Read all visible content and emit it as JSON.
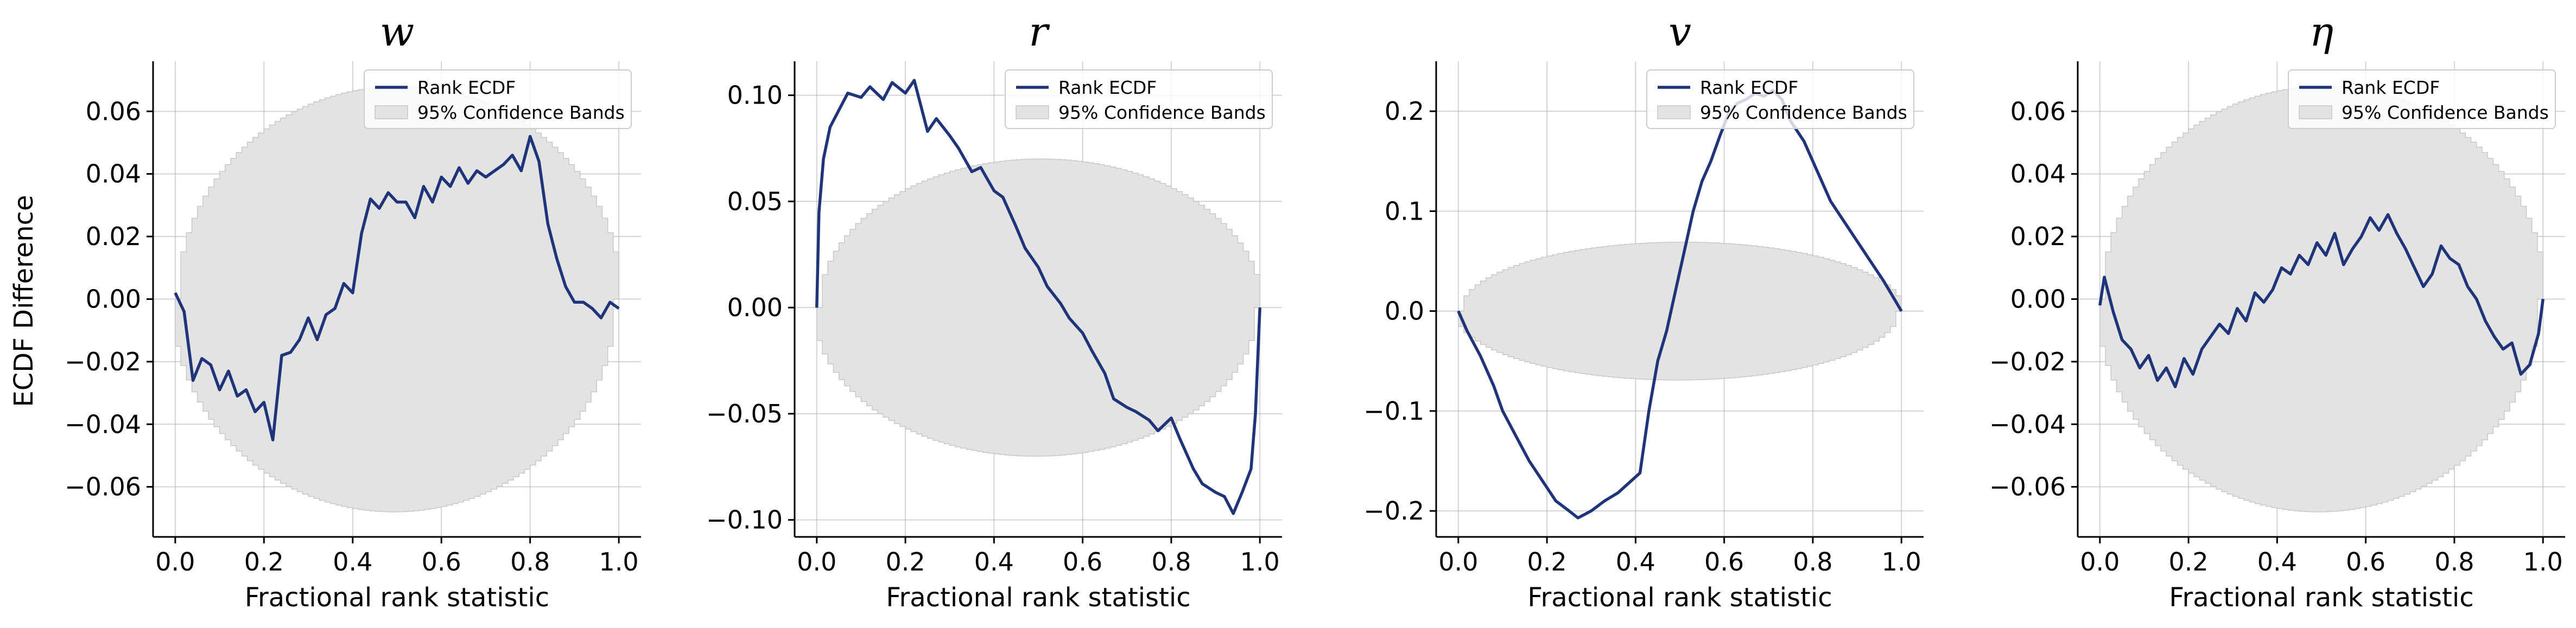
{
  "figure": {
    "ylabel": "ECDF Difference",
    "colors": {
      "line": "#1f3479",
      "band": "#e3e3e3",
      "band_edge": "#c8c8c8",
      "grid": "#b0b0b0"
    }
  },
  "chart_data": [
    {
      "type": "line",
      "title": "w",
      "xlabel": "Fractional rank statistic",
      "ylabel": "ECDF Difference",
      "xlim": [
        -0.05,
        1.05
      ],
      "ylim": [
        -0.076,
        0.076
      ],
      "xticks": [
        0.0,
        0.2,
        0.4,
        0.6,
        0.8,
        1.0
      ],
      "xtick_labels": [
        "0.0",
        "0.2",
        "0.4",
        "0.6",
        "0.8",
        "1.0"
      ],
      "yticks": [
        -0.06,
        -0.04,
        -0.02,
        0.0,
        0.02,
        0.04,
        0.06
      ],
      "ytick_labels": [
        "−0.06",
        "−0.04",
        "−0.02",
        "0.00",
        "0.02",
        "0.04",
        "0.06"
      ],
      "grid": true,
      "legend": {
        "position": "top-right",
        "entries": [
          "Rank ECDF",
          "95% Confidence Bands"
        ]
      },
      "band_half_width": 0.068,
      "series": [
        {
          "name": "Rank ECDF",
          "x": [
            0.0,
            0.02,
            0.04,
            0.06,
            0.08,
            0.1,
            0.12,
            0.14,
            0.16,
            0.18,
            0.2,
            0.22,
            0.24,
            0.26,
            0.28,
            0.3,
            0.32,
            0.34,
            0.36,
            0.38,
            0.4,
            0.42,
            0.44,
            0.46,
            0.48,
            0.5,
            0.52,
            0.54,
            0.56,
            0.58,
            0.6,
            0.62,
            0.64,
            0.66,
            0.68,
            0.7,
            0.72,
            0.74,
            0.76,
            0.78,
            0.8,
            0.82,
            0.84,
            0.86,
            0.88,
            0.9,
            0.92,
            0.94,
            0.96,
            0.98,
            1.0
          ],
          "y": [
            0.002,
            -0.004,
            -0.026,
            -0.019,
            -0.021,
            -0.029,
            -0.023,
            -0.031,
            -0.029,
            -0.036,
            -0.033,
            -0.045,
            -0.018,
            -0.017,
            -0.013,
            -0.006,
            -0.013,
            -0.005,
            -0.003,
            0.005,
            0.002,
            0.021,
            0.032,
            0.029,
            0.034,
            0.031,
            0.031,
            0.026,
            0.036,
            0.031,
            0.039,
            0.036,
            0.042,
            0.037,
            0.041,
            0.039,
            0.041,
            0.043,
            0.046,
            0.041,
            0.052,
            0.044,
            0.024,
            0.013,
            0.004,
            -0.001,
            -0.001,
            -0.003,
            -0.006,
            -0.001,
            -0.003
          ]
        }
      ]
    },
    {
      "type": "line",
      "title": "r",
      "xlabel": "Fractional rank statistic",
      "xlim": [
        -0.05,
        1.05
      ],
      "ylim": [
        -0.108,
        0.116
      ],
      "xticks": [
        0.0,
        0.2,
        0.4,
        0.6,
        0.8,
        1.0
      ],
      "xtick_labels": [
        "0.0",
        "0.2",
        "0.4",
        "0.6",
        "0.8",
        "1.0"
      ],
      "yticks": [
        -0.1,
        -0.05,
        0.0,
        0.05,
        0.1
      ],
      "ytick_labels": [
        "−0.10",
        "−0.05",
        "0.00",
        "0.05",
        "0.10"
      ],
      "grid": true,
      "legend": {
        "position": "top-right",
        "entries": [
          "Rank ECDF",
          "95% Confidence Bands"
        ]
      },
      "band_half_width": 0.07,
      "series": [
        {
          "name": "Rank ECDF",
          "x": [
            0.0,
            0.005,
            0.015,
            0.03,
            0.05,
            0.07,
            0.1,
            0.12,
            0.15,
            0.17,
            0.2,
            0.22,
            0.25,
            0.27,
            0.3,
            0.32,
            0.35,
            0.37,
            0.4,
            0.42,
            0.45,
            0.47,
            0.5,
            0.52,
            0.55,
            0.57,
            0.6,
            0.62,
            0.65,
            0.67,
            0.7,
            0.72,
            0.75,
            0.77,
            0.8,
            0.82,
            0.85,
            0.87,
            0.9,
            0.92,
            0.94,
            0.96,
            0.98,
            0.99,
            1.0
          ],
          "y": [
            0.0,
            0.045,
            0.07,
            0.085,
            0.093,
            0.101,
            0.099,
            0.104,
            0.098,
            0.106,
            0.101,
            0.107,
            0.083,
            0.089,
            0.081,
            0.075,
            0.064,
            0.066,
            0.055,
            0.052,
            0.038,
            0.028,
            0.019,
            0.01,
            0.002,
            -0.005,
            -0.012,
            -0.02,
            -0.031,
            -0.043,
            -0.047,
            -0.049,
            -0.053,
            -0.058,
            -0.052,
            -0.062,
            -0.076,
            -0.083,
            -0.087,
            -0.089,
            -0.097,
            -0.087,
            -0.076,
            -0.05,
            0.0
          ]
        }
      ]
    },
    {
      "type": "line",
      "title": "v",
      "xlabel": "Fractional rank statistic",
      "xlim": [
        -0.05,
        1.05
      ],
      "ylim": [
        -0.226,
        0.25
      ],
      "xticks": [
        0.0,
        0.2,
        0.4,
        0.6,
        0.8,
        1.0
      ],
      "xtick_labels": [
        "0.0",
        "0.2",
        "0.4",
        "0.6",
        "0.8",
        "1.0"
      ],
      "yticks": [
        -0.2,
        -0.1,
        0.0,
        0.1,
        0.2
      ],
      "ytick_labels": [
        "−0.2",
        "−0.1",
        "0.0",
        "0.1",
        "0.2"
      ],
      "grid": true,
      "legend": {
        "position": "top-right",
        "entries": [
          "Rank ECDF",
          "95% Confidence Bands"
        ]
      },
      "band_half_width": 0.069,
      "series": [
        {
          "name": "Rank ECDF",
          "x": [
            0.0,
            0.02,
            0.05,
            0.08,
            0.1,
            0.13,
            0.16,
            0.19,
            0.22,
            0.25,
            0.27,
            0.3,
            0.33,
            0.36,
            0.39,
            0.41,
            0.43,
            0.45,
            0.47,
            0.49,
            0.51,
            0.53,
            0.55,
            0.57,
            0.59,
            0.61,
            0.63,
            0.65,
            0.67,
            0.69,
            0.71,
            0.73,
            0.75,
            0.78,
            0.81,
            0.84,
            0.87,
            0.9,
            0.93,
            0.96,
            0.98,
            1.0
          ],
          "y": [
            0.0,
            -0.02,
            -0.045,
            -0.075,
            -0.1,
            -0.125,
            -0.15,
            -0.17,
            -0.19,
            -0.2,
            -0.207,
            -0.2,
            -0.19,
            -0.182,
            -0.17,
            -0.162,
            -0.1,
            -0.05,
            -0.02,
            0.02,
            0.06,
            0.1,
            0.13,
            0.15,
            0.175,
            0.198,
            0.208,
            0.212,
            0.218,
            0.215,
            0.221,
            0.212,
            0.19,
            0.17,
            0.14,
            0.11,
            0.09,
            0.07,
            0.05,
            0.03,
            0.015,
            0.0
          ]
        }
      ]
    },
    {
      "type": "line",
      "title": "η",
      "xlabel": "Fractional rank statistic",
      "xlim": [
        -0.05,
        1.05
      ],
      "ylim": [
        -0.076,
        0.076
      ],
      "xticks": [
        0.0,
        0.2,
        0.4,
        0.6,
        0.8,
        1.0
      ],
      "xtick_labels": [
        "0.0",
        "0.2",
        "0.4",
        "0.6",
        "0.8",
        "1.0"
      ],
      "yticks": [
        -0.06,
        -0.04,
        -0.02,
        0.0,
        0.02,
        0.04,
        0.06
      ],
      "ytick_labels": [
        "−0.06",
        "−0.04",
        "−0.02",
        "0.00",
        "0.02",
        "0.04",
        "0.06"
      ],
      "grid": true,
      "legend": {
        "position": "top-right",
        "entries": [
          "Rank ECDF",
          "95% Confidence Bands"
        ]
      },
      "band_half_width": 0.068,
      "series": [
        {
          "name": "Rank ECDF",
          "x": [
            0.0,
            0.01,
            0.03,
            0.05,
            0.07,
            0.09,
            0.11,
            0.13,
            0.15,
            0.17,
            0.19,
            0.21,
            0.23,
            0.25,
            0.27,
            0.29,
            0.31,
            0.33,
            0.35,
            0.37,
            0.39,
            0.41,
            0.43,
            0.45,
            0.47,
            0.49,
            0.51,
            0.53,
            0.55,
            0.57,
            0.59,
            0.61,
            0.63,
            0.65,
            0.67,
            0.69,
            0.71,
            0.73,
            0.75,
            0.77,
            0.79,
            0.81,
            0.83,
            0.85,
            0.87,
            0.89,
            0.91,
            0.93,
            0.95,
            0.97,
            0.99,
            1.0
          ],
          "y": [
            -0.002,
            0.007,
            -0.004,
            -0.013,
            -0.016,
            -0.022,
            -0.018,
            -0.026,
            -0.022,
            -0.028,
            -0.019,
            -0.024,
            -0.016,
            -0.012,
            -0.008,
            -0.011,
            -0.003,
            -0.007,
            0.002,
            -0.001,
            0.003,
            0.01,
            0.008,
            0.014,
            0.011,
            0.018,
            0.014,
            0.021,
            0.011,
            0.016,
            0.02,
            0.026,
            0.022,
            0.027,
            0.021,
            0.016,
            0.01,
            0.004,
            0.008,
            0.017,
            0.013,
            0.011,
            0.004,
            0.0,
            -0.007,
            -0.012,
            -0.016,
            -0.014,
            -0.024,
            -0.021,
            -0.011,
            0.0
          ]
        }
      ]
    }
  ]
}
